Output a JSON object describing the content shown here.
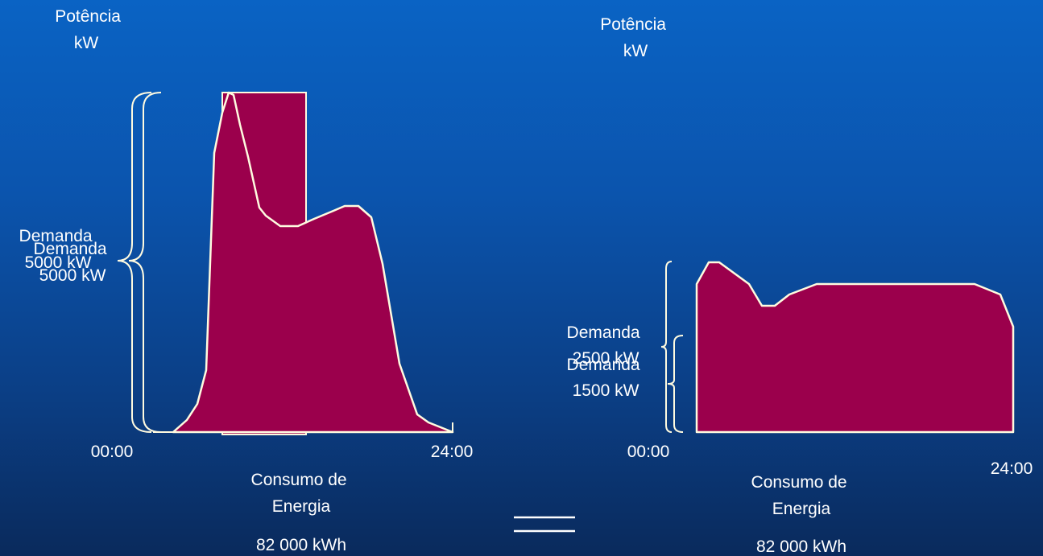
{
  "colors": {
    "fill": "#9b004c",
    "stroke": "#fffbe0",
    "text": "#ffffff"
  },
  "left": {
    "axis_title_line1": "Potência",
    "axis_title_line2": "kW",
    "demand_a_line1": "Demanda",
    "demand_a_line2": "5000 kW",
    "demand_b_line1": "Demanda",
    "demand_b_line2": "5000 kW",
    "time_start": "00:00",
    "time_end": "24:00",
    "consumption_line1": "Consumo de",
    "consumption_line2": "Energia",
    "consumption_value": "82 000 kWh"
  },
  "right": {
    "axis_title_line1": "Potência",
    "axis_title_line2": "kW",
    "demand_a_line1": "Demanda",
    "demand_a_line2": "2500 kW",
    "demand_b_line1": "Demanda",
    "demand_b_line2": "1500 kW",
    "time_start": "00:00",
    "time_end": "24:00",
    "consumption_line1": "Consumo de",
    "consumption_line2": "Energia",
    "consumption_value": "82 000 kWh"
  },
  "equals_sign": "="
}
